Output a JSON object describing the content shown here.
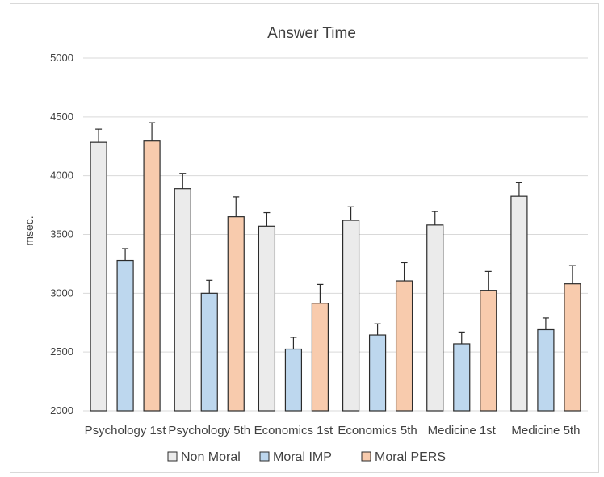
{
  "chart_data": {
    "type": "bar",
    "title": "Answer Time",
    "xlabel": "",
    "ylabel": "msec.",
    "ylim": [
      2000,
      5000
    ],
    "yticks": [
      2000,
      2500,
      3000,
      3500,
      4000,
      4500,
      5000
    ],
    "grid": true,
    "legend_position": "bottom",
    "categories": [
      "Psychology 1st",
      "Psychology 5th",
      "Economics 1st",
      "Economics 5th",
      "Medicine 1st",
      "Medicine 5th"
    ],
    "series": [
      {
        "name": "Non Moral",
        "color": "#ebebeb",
        "values": [
          4285,
          3890,
          3570,
          3620,
          3580,
          3825
        ],
        "errors": [
          110,
          130,
          115,
          115,
          115,
          115
        ]
      },
      {
        "name": "Moral IMP",
        "color": "#bdd7ee",
        "values": [
          3280,
          3000,
          2525,
          2645,
          2570,
          2690
        ],
        "errors": [
          100,
          110,
          100,
          95,
          100,
          100
        ]
      },
      {
        "name": "Moral PERS",
        "color": "#f8cbad",
        "values": [
          4295,
          3650,
          2915,
          3105,
          3025,
          3080
        ],
        "errors": [
          155,
          170,
          160,
          155,
          160,
          155
        ]
      }
    ]
  }
}
